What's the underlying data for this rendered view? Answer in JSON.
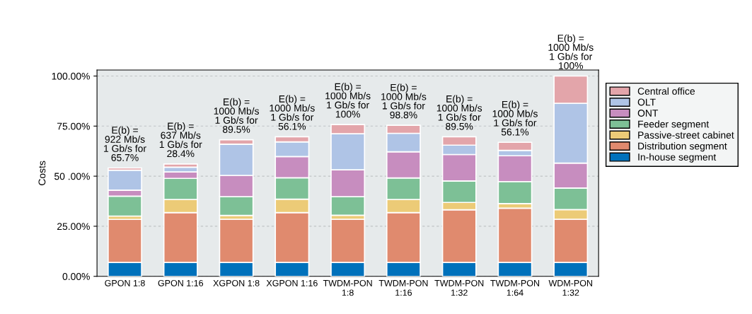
{
  "chart_data": {
    "type": "bar",
    "stacked": true,
    "ylabel": "Costs",
    "categories": [
      "GPON 1:8",
      "GPON 1:16",
      "XGPON 1:8",
      "XGPON 1:16",
      "TWDM-PON\n1:8",
      "TWDM-PON\n1:16",
      "TWDM-PON\n1:32",
      "TWDM-PON\n1:64",
      "WDM-PON\n1:32"
    ],
    "series": [
      {
        "name": "In-house segment",
        "color": "#0071bb",
        "values": [
          6.9,
          6.9,
          6.9,
          6.9,
          6.9,
          6.9,
          6.9,
          6.9,
          6.9
        ]
      },
      {
        "name": "Distribution segment",
        "color": "#e08a6e",
        "values": [
          21.5,
          24.9,
          21.6,
          24.9,
          21.6,
          24.9,
          26.3,
          27.1,
          21.6
        ]
      },
      {
        "name": "Passive-street cabinet",
        "color": "#eccb77",
        "values": [
          1.7,
          6.6,
          1.9,
          6.7,
          2.0,
          6.6,
          3.7,
          2.3,
          4.8
        ]
      },
      {
        "name": "Feeder segment",
        "color": "#7dc096",
        "values": [
          9.9,
          10.5,
          9.4,
          10.7,
          9.3,
          10.7,
          10.7,
          11.0,
          10.8
        ]
      },
      {
        "name": "ONT",
        "color": "#c78dbf",
        "values": [
          3.0,
          3.2,
          10.6,
          10.6,
          13.4,
          13.1,
          13.2,
          12.9,
          12.4
        ]
      },
      {
        "name": "OLT",
        "color": "#afc4e6",
        "values": [
          10.0,
          2.4,
          15.6,
          7.3,
          18.0,
          9.2,
          4.7,
          2.7,
          29.9
        ]
      },
      {
        "name": "Central office",
        "color": "#e3a5aa",
        "values": [
          1.1,
          1.6,
          2.2,
          2.6,
          4.6,
          4.0,
          4.2,
          4.0,
          13.6
        ]
      }
    ],
    "ylim": [
      0,
      103
    ],
    "yticks": [
      {
        "value": 0,
        "label": "0.00%"
      },
      {
        "value": 25,
        "label": "25.00%"
      },
      {
        "value": 50,
        "label": "50 .00%"
      },
      {
        "value": 75,
        "label": "75.00%"
      },
      {
        "value": 100,
        "label": "100.00%"
      }
    ],
    "grid": "y",
    "legend": "right",
    "annotations": [
      {
        "text": "E(b) =\n922 Mb/s\n1 Gb/s for\n65.7%",
        "x": "GPON 1:8",
        "y": 54.1
      },
      {
        "text": "E(b) =\n637 Mb/s\n1 Gb/s for\n28.4%",
        "x": "GPON 1:16",
        "y": 56.1
      },
      {
        "text": "E(b) =\n1000 Mb/s\n1 Gb/s for\n89.5%",
        "x": "XGPON 1:8",
        "y": 68.2
      },
      {
        "text": "E(b) =\n1000 Mb/s\n1 Gb/s for\n56.1%",
        "x": "XGPON 1:16",
        "y": 69.7
      },
      {
        "text": "E(b) =\n1000 Mb/s\n1 Gb/s for\n100%",
        "x": "TWDM-PON\n1:8",
        "y": 75.8
      },
      {
        "text": "E(b) =\n1000 Mb/s\n1 Gb/s for\n98.8%",
        "x": "TWDM-PON\n1:16",
        "y": 75.4
      },
      {
        "text": "E(b) =\n1000 Mb/s\n1 Gb/s for\n89.5%",
        "x": "TWDM-PON\n1:32",
        "y": 69.7
      },
      {
        "text": "E(b) =\n1000 Mb/s\n1 Gb/s for\n56.1%",
        "x": "TWDM-PON\n1:64",
        "y": 66.9
      },
      {
        "text": "E(b) =\n1000 Mb/s\n1 Gb/s for\n100%",
        "x": "WDM-PON\n1:32",
        "y": 100.0
      }
    ]
  }
}
